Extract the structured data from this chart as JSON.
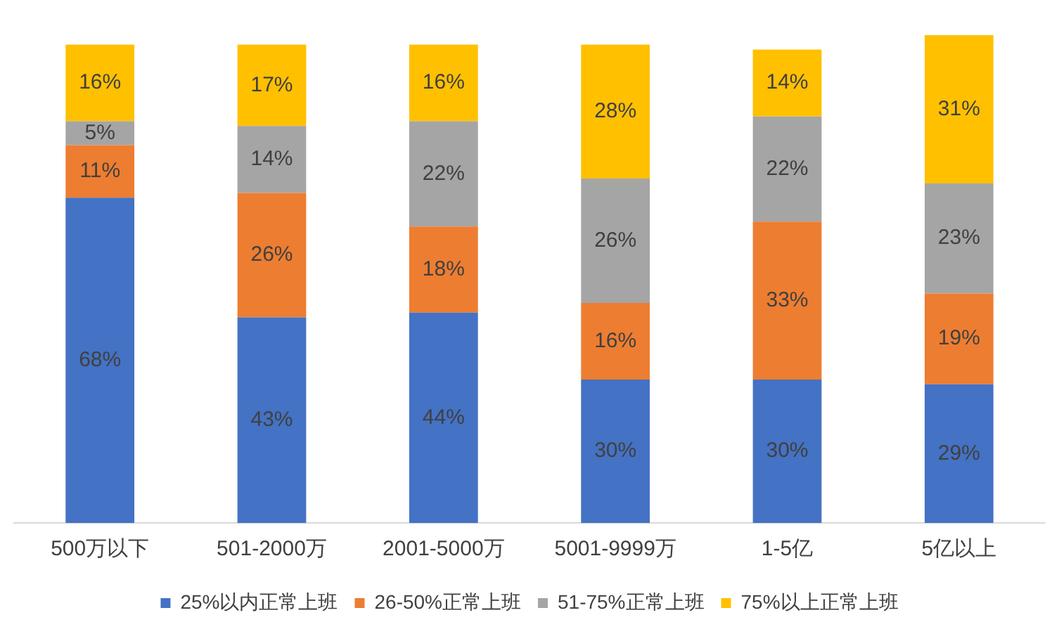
{
  "chart_data": {
    "type": "bar",
    "stacked": true,
    "legend": "bottom",
    "grid": false,
    "categories": [
      "500万以下",
      "501-2000万",
      "2001-5000万",
      "5001-9999万",
      "1-5亿",
      "5亿以上"
    ],
    "series": [
      {
        "name": "25%以内正常上班",
        "color": "#4472c4",
        "values": [
          68,
          43,
          44,
          30,
          30,
          29
        ],
        "value_labels": [
          "68%",
          "43%",
          "44%",
          "30%",
          "30%",
          "29%"
        ]
      },
      {
        "name": "26-50%正常上班",
        "color": "#ed7d31",
        "values": [
          11,
          26,
          18,
          16,
          33,
          19
        ],
        "value_labels": [
          "11%",
          "26%",
          "18%",
          "16%",
          "33%",
          "19%"
        ]
      },
      {
        "name": "51-75%正常上班",
        "color": "#a5a5a5",
        "values": [
          5,
          14,
          22,
          26,
          22,
          23
        ],
        "value_labels": [
          "5%",
          "14%",
          "22%",
          "26%",
          "22%",
          "23%"
        ]
      },
      {
        "name": "75%以上正常上班",
        "color": "#ffc000",
        "values": [
          16,
          17,
          16,
          28,
          14,
          31
        ],
        "value_labels": [
          "16%",
          "17%",
          "16%",
          "28%",
          "14%",
          "31%"
        ]
      }
    ]
  }
}
